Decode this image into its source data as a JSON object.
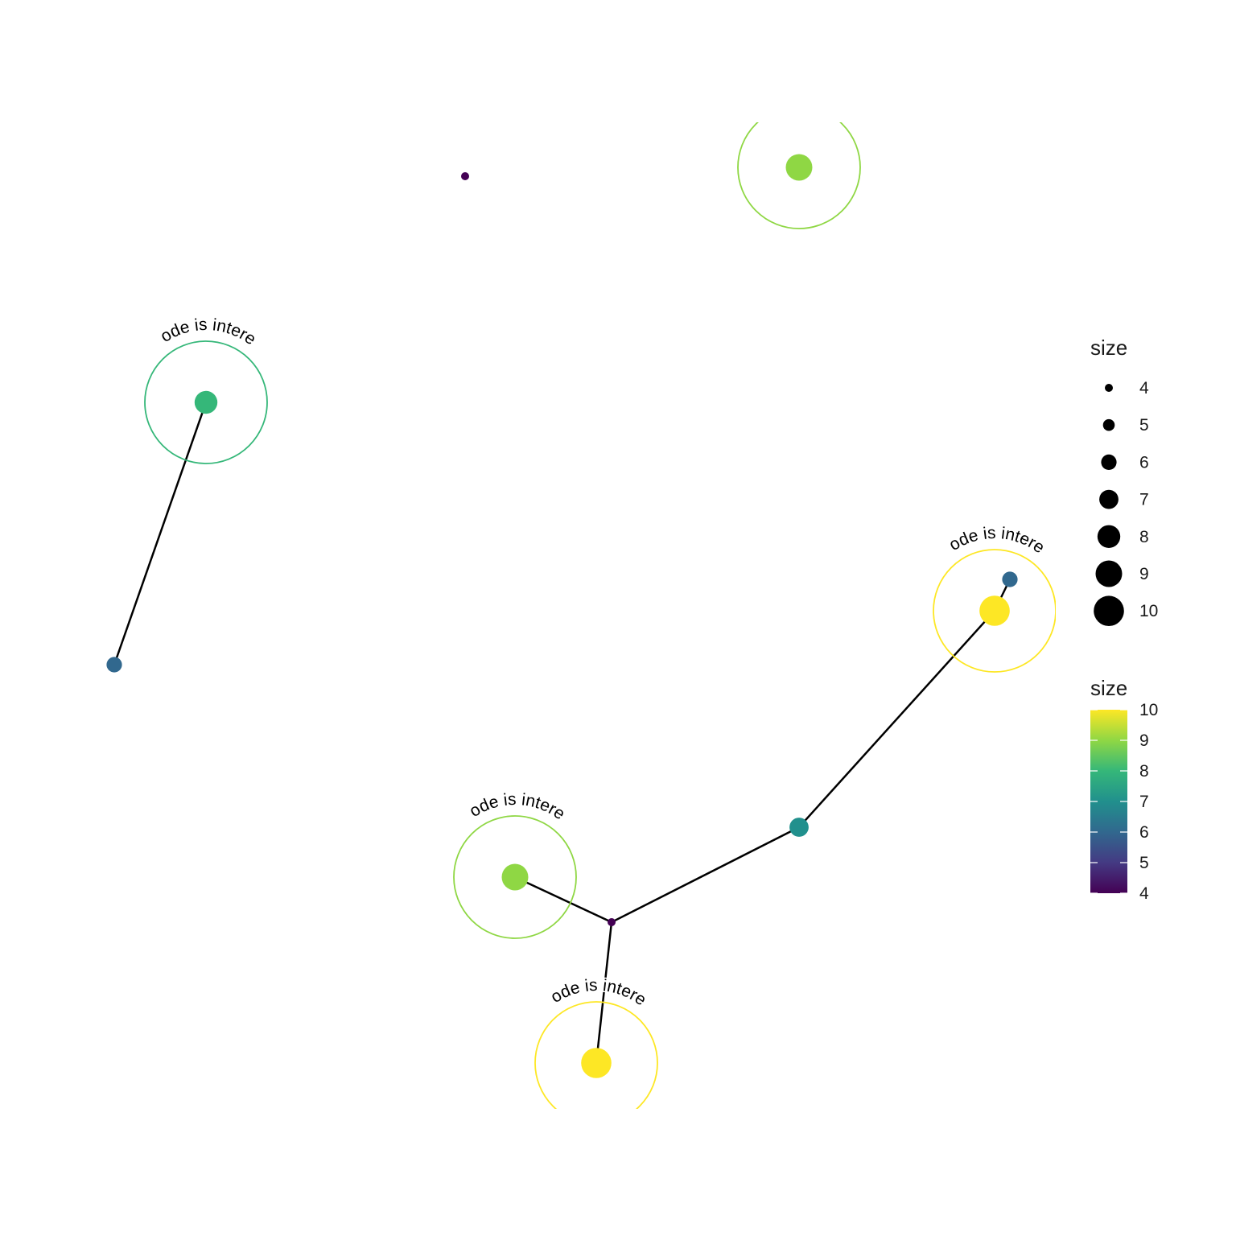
{
  "diagram": {
    "annotation_text": "this node is interesting",
    "nodes": [
      {
        "id": "n1",
        "size": 4,
        "color": "#440154",
        "highlighted": false
      },
      {
        "id": "n2",
        "size": 9,
        "color": "#8fd744",
        "highlighted": true
      },
      {
        "id": "n3",
        "size": 8,
        "color": "#35b779",
        "highlighted": true
      },
      {
        "id": "n4",
        "size": 6,
        "color": "#31688e",
        "highlighted": false
      },
      {
        "id": "n5",
        "size": 10,
        "color": "#fde725",
        "highlighted": true
      },
      {
        "id": "n6",
        "size": 6,
        "color": "#31688e",
        "highlighted": false
      },
      {
        "id": "n7",
        "size": 7,
        "color": "#21908d",
        "highlighted": false
      },
      {
        "id": "n8",
        "size": 9,
        "color": "#8fd744",
        "highlighted": true
      },
      {
        "id": "n9",
        "size": 4,
        "color": "#440154",
        "highlighted": false
      },
      {
        "id": "n10",
        "size": 10,
        "color": "#fde725",
        "highlighted": true
      }
    ],
    "edges": [
      [
        "n3",
        "n4"
      ],
      [
        "n6",
        "n5"
      ],
      [
        "n5",
        "n7"
      ],
      [
        "n7",
        "n9"
      ],
      [
        "n8",
        "n9"
      ],
      [
        "n9",
        "n10"
      ]
    ]
  },
  "legend": {
    "size_title": "size",
    "size_items": [
      4,
      5,
      6,
      7,
      8,
      9,
      10
    ],
    "color_title": "size",
    "color_ticks": [
      4,
      5,
      6,
      7,
      8,
      9,
      10
    ],
    "color_scale": [
      "#440154",
      "#443a83",
      "#31688e",
      "#21908d",
      "#35b779",
      "#8fd744",
      "#fde725"
    ]
  }
}
